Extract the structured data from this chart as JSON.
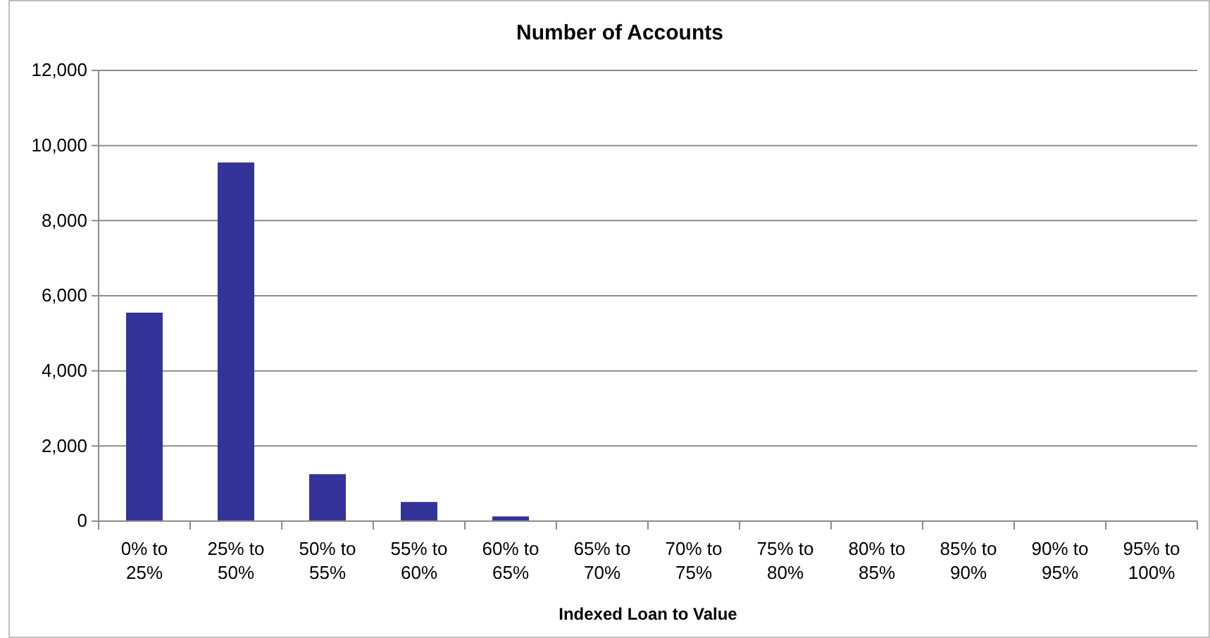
{
  "chart_data": {
    "type": "bar",
    "title": "Number of Accounts",
    "xlabel": "Indexed Loan to Value",
    "categories": [
      "0% to 25%",
      "25% to 50%",
      "50% to 55%",
      "55% to 60%",
      "60% to 65%",
      "65% to 70%",
      "70% to 75%",
      "75% to 80%",
      "80% to 85%",
      "85% to 90%",
      "90% to 95%",
      "95% to 100%"
    ],
    "values": [
      5550,
      9550,
      1250,
      510,
      125,
      10,
      5,
      0,
      0,
      0,
      0,
      0
    ],
    "color": "#333399",
    "ylim": [
      0,
      12000
    ],
    "yticks": [
      {
        "value": 0,
        "label": "0"
      },
      {
        "value": 2000,
        "label": "2,000"
      },
      {
        "value": 4000,
        "label": "4,000"
      },
      {
        "value": 6000,
        "label": "6,000"
      },
      {
        "value": 8000,
        "label": "8,000"
      },
      {
        "value": 10000,
        "label": "10,000"
      },
      {
        "value": 12000,
        "label": "12,000"
      }
    ],
    "grid": "y"
  }
}
